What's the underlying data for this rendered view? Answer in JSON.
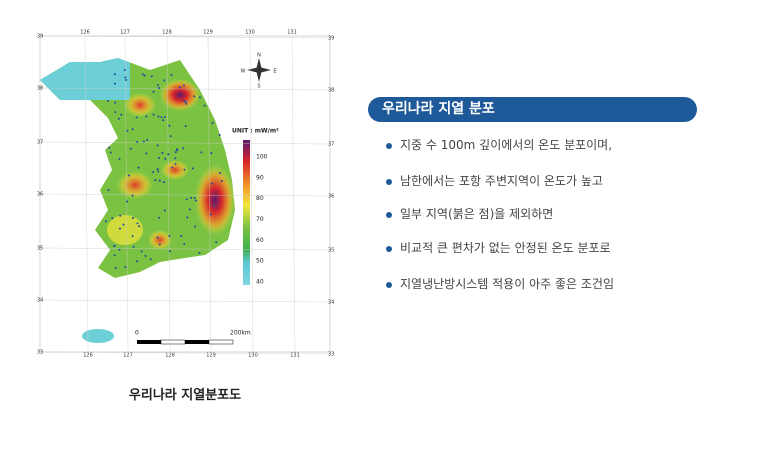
{
  "map": {
    "longitudes": [
      "126",
      "127",
      "128",
      "129",
      "130",
      "131"
    ],
    "latitudes": [
      "39",
      "38",
      "37",
      "36",
      "35",
      "34",
      "33"
    ],
    "compass": [
      "N",
      "S",
      "W",
      "E"
    ],
    "legend": {
      "title": "UNIT : mW/m²",
      "ticks": [
        "100",
        "90",
        "80",
        "70",
        "60",
        "50",
        "40"
      ]
    },
    "scale": [
      "0",
      "200km"
    ],
    "caption": "우리나라 지열분포도"
  },
  "panel": {
    "title": "우리나라 지열 분포",
    "bullets": [
      "지중 수 100m 깊이에서의 온도 분포이며,",
      "남한에서는  포항 주변지역이 온도가 높고",
      "일부 지역(붉은 점)을 제외하면",
      "비교적 큰 편차가 없는 안정된 온도 분포로",
      "지열냉난방시스템 적용이 아주 좋은 조건임"
    ]
  }
}
